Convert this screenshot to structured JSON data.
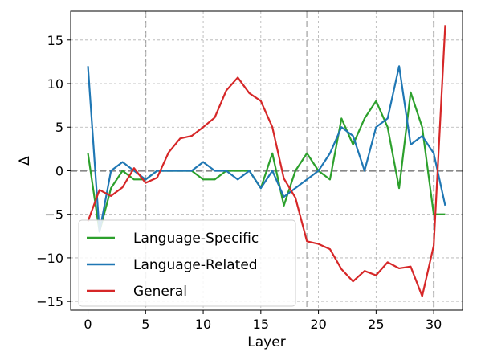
{
  "chart_data": {
    "type": "line",
    "xlabel": "Layer",
    "ylabel": "Δ",
    "xlim": [
      -1.5,
      32.5
    ],
    "ylim": [
      -16,
      18.3
    ],
    "xticks": [
      0,
      5,
      10,
      15,
      20,
      25,
      30
    ],
    "yticks": [
      -15,
      -10,
      -5,
      0,
      5,
      10,
      15
    ],
    "ytick_labels": [
      "−15",
      "−10",
      "−5",
      "0",
      "5",
      "10",
      "15"
    ],
    "grid": true,
    "legend_position": "lower-left",
    "reference_lines": {
      "horizontal_y": 0,
      "vertical_x": [
        5,
        19,
        30
      ],
      "color": "#888888"
    },
    "series": [
      {
        "name": "Language-Specific",
        "color": "#2ca02c",
        "x": [
          0,
          1,
          2,
          3,
          4,
          5,
          6,
          7,
          8,
          9,
          10,
          11,
          12,
          13,
          14,
          15,
          16,
          17,
          18,
          19,
          20,
          21,
          22,
          23,
          24,
          25,
          26,
          27,
          28,
          29,
          30,
          31
        ],
        "values": [
          2,
          -7,
          -2,
          0,
          -1,
          -1,
          0,
          0,
          0,
          0,
          -1,
          -1,
          0,
          0,
          0,
          -2,
          2,
          -4,
          0,
          2,
          0,
          -1,
          6,
          3,
          6,
          8,
          5,
          -2,
          9,
          5,
          -5,
          -5
        ]
      },
      {
        "name": "Language-Related",
        "color": "#1f77b4",
        "x": [
          0,
          1,
          2,
          3,
          4,
          5,
          6,
          7,
          8,
          9,
          10,
          11,
          12,
          13,
          14,
          15,
          16,
          17,
          18,
          19,
          20,
          21,
          22,
          23,
          24,
          25,
          26,
          27,
          28,
          29,
          30,
          31
        ],
        "values": [
          12,
          -7,
          0,
          1,
          0,
          -1,
          0,
          0,
          0,
          0,
          1,
          0,
          0,
          -1,
          0,
          -2,
          0,
          -3,
          -2,
          -1,
          0,
          2,
          5,
          4,
          0,
          5,
          6,
          12,
          3,
          4,
          2,
          -4
        ]
      },
      {
        "name": "General",
        "color": "#d62728",
        "x": [
          0,
          1,
          2,
          3,
          4,
          5,
          6,
          7,
          8,
          9,
          10,
          11,
          12,
          13,
          14,
          15,
          16,
          17,
          18,
          19,
          20,
          21,
          22,
          23,
          24,
          25,
          26,
          27,
          28,
          29,
          30,
          31
        ],
        "values": [
          -5.8,
          -2.2,
          -2.9,
          -1.9,
          0.3,
          -1.4,
          -0.8,
          2.1,
          3.7,
          4.0,
          5.0,
          6.1,
          9.2,
          10.7,
          8.9,
          8.0,
          5.0,
          -0.9,
          -3.1,
          -8.1,
          -8.4,
          -9.0,
          -11.3,
          -12.7,
          -11.5,
          -12.0,
          -10.5,
          -11.2,
          -11.0,
          -14.4,
          -8.6,
          16.7
        ]
      }
    ]
  }
}
